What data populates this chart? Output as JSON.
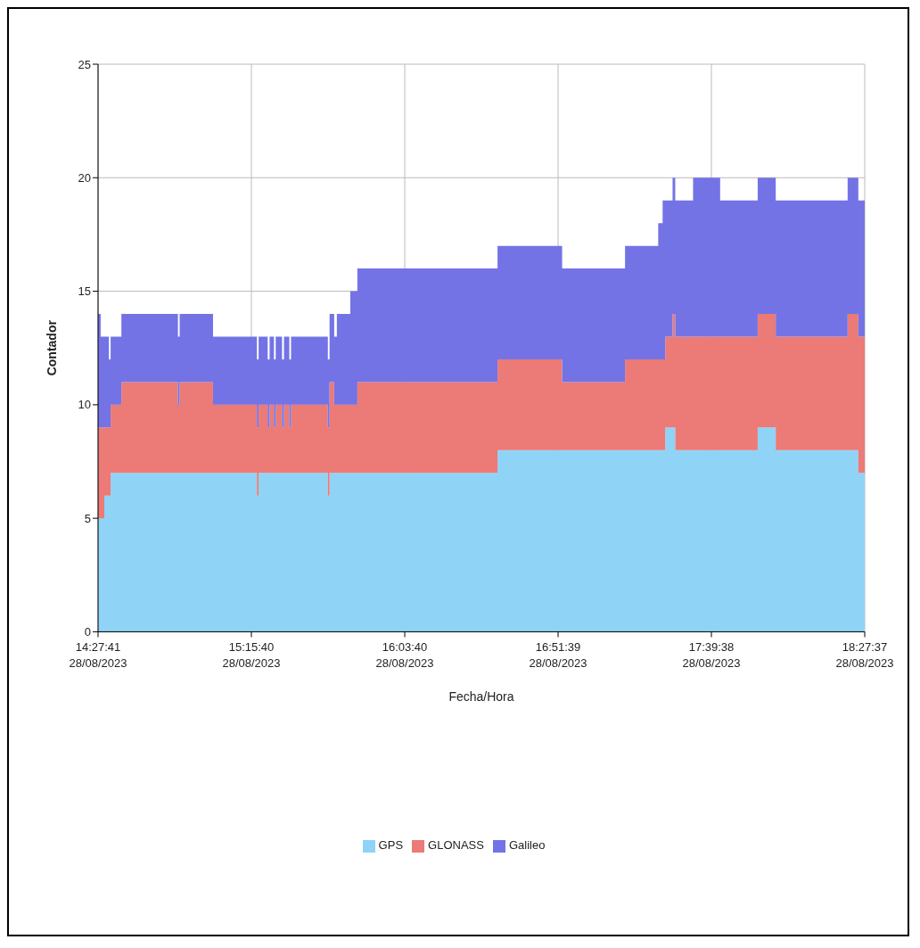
{
  "chart_data": {
    "type": "area",
    "stacked": true,
    "xlabel": "Fecha/Hora",
    "ylabel": "Contador",
    "x": [
      "2023-08-28T14:27:41",
      "2023-08-28T14:28:30",
      "2023-08-28T14:29:38",
      "2023-08-28T14:31:05",
      "2023-08-28T14:31:37",
      "2023-08-28T14:34:59",
      "2023-08-28T14:52:41",
      "2023-08-28T14:53:13",
      "2023-08-28T15:03:40",
      "2023-08-28T15:17:24",
      "2023-08-28T15:17:56",
      "2023-08-28T15:20:46",
      "2023-08-28T15:21:22",
      "2023-08-28T15:22:44",
      "2023-08-28T15:23:17",
      "2023-08-28T15:25:16",
      "2023-08-28T15:25:52",
      "2023-08-28T15:27:32",
      "2023-08-28T15:28:05",
      "2023-08-28T15:39:36",
      "2023-08-28T15:40:08",
      "2023-08-28T15:41:35",
      "2023-08-28T15:42:25",
      "2023-08-28T15:46:37",
      "2023-08-28T15:48:50",
      "2023-08-28T16:32:42",
      "2023-08-28T16:52:55",
      "2023-08-28T17:12:36",
      "2023-08-28T17:22:59",
      "2023-08-28T17:24:22",
      "2023-08-28T17:25:12",
      "2023-08-28T17:27:29",
      "2023-08-28T17:28:19",
      "2023-08-28T17:33:54",
      "2023-08-28T17:42:22",
      "2023-08-28T17:54:07",
      "2023-08-28T17:59:46",
      "2023-08-28T18:22:16",
      "2023-08-28T18:25:37",
      "2023-08-28T18:27:37"
    ],
    "series": [
      {
        "name": "GPS",
        "color": "#8fd3f7",
        "values": [
          5,
          5,
          6,
          6,
          7,
          7,
          7,
          7,
          7,
          6,
          7,
          7,
          7,
          7,
          7,
          7,
          7,
          7,
          7,
          6,
          7,
          7,
          7,
          7,
          7,
          8,
          8,
          8,
          8,
          8,
          9,
          9,
          8,
          8,
          8,
          9,
          8,
          8,
          7,
          7
        ]
      },
      {
        "name": "GLONASS",
        "color": "#ec7a76",
        "values": [
          4,
          4,
          3,
          3,
          3,
          4,
          3,
          4,
          3,
          3,
          3,
          2,
          3,
          2,
          3,
          2,
          3,
          2,
          3,
          3,
          4,
          3,
          3,
          3,
          4,
          4,
          3,
          4,
          4,
          4,
          4,
          5,
          5,
          5,
          5,
          5,
          5,
          6,
          6,
          6
        ]
      },
      {
        "name": "Galileo",
        "color": "#7373e6",
        "values": [
          5,
          4,
          4,
          3,
          3,
          3,
          3,
          3,
          3,
          3,
          3,
          3,
          3,
          3,
          3,
          3,
          3,
          3,
          3,
          3,
          3,
          3,
          4,
          5,
          5,
          5,
          5,
          5,
          6,
          7,
          6,
          6,
          6,
          7,
          6,
          6,
          6,
          6,
          6,
          6
        ]
      }
    ],
    "xlim": [
      "2023-08-28T14:27:41",
      "2023-08-28T18:27:37"
    ],
    "xticks": [
      {
        "value": "2023-08-28T14:27:41",
        "label": "14:27:41\n28/08/2023"
      },
      {
        "value": "2023-08-28T15:15:40",
        "label": "15:15:40\n28/08/2023"
      },
      {
        "value": "2023-08-28T16:03:40",
        "label": "16:03:40\n28/08/2023"
      },
      {
        "value": "2023-08-28T16:51:39",
        "label": "16:51:39\n28/08/2023"
      },
      {
        "value": "2023-08-28T17:39:38",
        "label": "17:39:38\n28/08/2023"
      },
      {
        "value": "2023-08-28T18:27:37",
        "label": "18:27:37\n28/08/2023"
      }
    ],
    "ylim": [
      0,
      25
    ],
    "yticks": [
      0,
      5,
      10,
      15,
      20,
      25
    ],
    "grid": true,
    "legend": "bottom"
  }
}
